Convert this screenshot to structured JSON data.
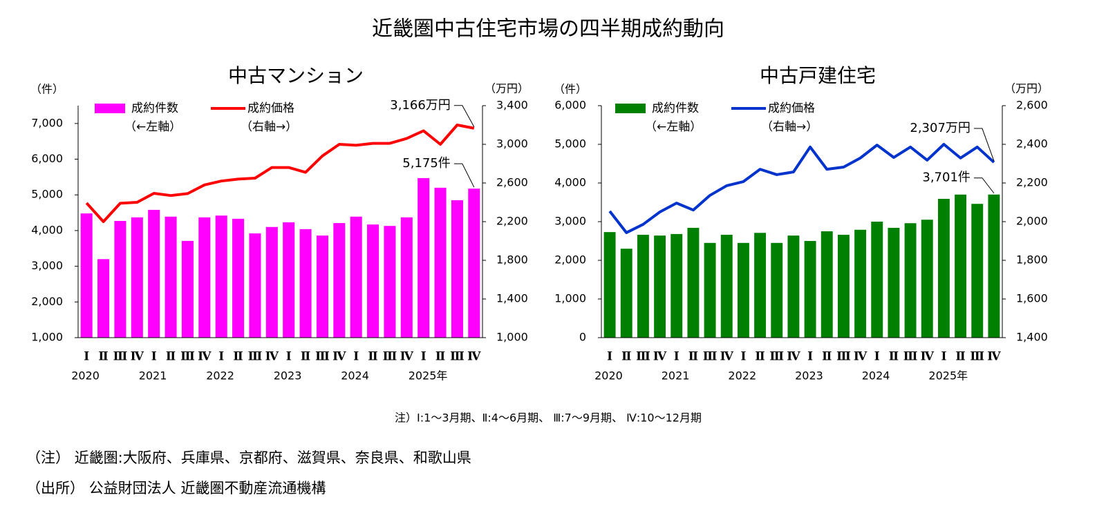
{
  "title": "近畿圏中古住宅市場の四半期成約動向",
  "chart_data": [
    {
      "type": "bar_line",
      "title": "中古マンション",
      "ylabel": "（件）",
      "y2label": "（万円）",
      "categories": [
        "Ⅰ",
        "Ⅱ",
        "Ⅲ",
        "Ⅳ",
        "Ⅰ",
        "Ⅱ",
        "Ⅲ",
        "Ⅳ",
        "Ⅰ",
        "Ⅱ",
        "Ⅲ",
        "Ⅳ",
        "Ⅰ",
        "Ⅱ",
        "Ⅲ",
        "Ⅳ",
        "Ⅰ",
        "Ⅱ",
        "Ⅲ",
        "Ⅳ",
        "Ⅰ",
        "Ⅱ",
        "Ⅲ",
        "Ⅳ"
      ],
      "years": [
        "2020",
        "2021",
        "2022",
        "2023",
        "2024",
        "2025年"
      ],
      "ylim": [
        1000,
        7500
      ],
      "yticks": [
        {
          "value": 1000,
          "label": "1,000"
        },
        {
          "value": 2000,
          "label": "2,000"
        },
        {
          "value": 3000,
          "label": "3,000"
        },
        {
          "value": 4000,
          "label": "4,000"
        },
        {
          "value": 5000,
          "label": "5,000"
        },
        {
          "value": 6000,
          "label": "6,000"
        },
        {
          "value": 7000,
          "label": "7,000"
        }
      ],
      "y2lim": [
        1000,
        3400
      ],
      "y2ticks": [
        {
          "value": 1000,
          "label": "1,000"
        },
        {
          "value": 1400,
          "label": "1,400"
        },
        {
          "value": 1800,
          "label": "1,800"
        },
        {
          "value": 2200,
          "label": "2,200"
        },
        {
          "value": 2600,
          "label": "2,600"
        },
        {
          "value": 3000,
          "label": "3,000"
        },
        {
          "value": 3400,
          "label": "3,400"
        }
      ],
      "series": [
        {
          "name": "成約件数",
          "legend_note": "（←左軸）",
          "type": "bar",
          "color": "#ff00ff",
          "values": [
            4480,
            3200,
            4270,
            4370,
            4580,
            4390,
            3710,
            4370,
            4420,
            4330,
            3920,
            4100,
            4230,
            4040,
            3860,
            4210,
            4390,
            4170,
            4130,
            4370,
            5470,
            5200,
            4850,
            5175
          ],
          "value_labels": [
            null,
            null,
            null,
            null,
            null,
            null,
            null,
            null,
            null,
            null,
            null,
            null,
            null,
            null,
            null,
            null,
            null,
            null,
            null,
            null,
            null,
            null,
            null,
            "5,175件"
          ]
        },
        {
          "name": "成約価格",
          "legend_note": "（右軸→）",
          "type": "line",
          "axis": "y2",
          "color": "#ff0000",
          "values": [
            2393,
            2200,
            2390,
            2400,
            2493,
            2470,
            2490,
            2580,
            2620,
            2640,
            2650,
            2760,
            2760,
            2710,
            2880,
            3000,
            2990,
            3010,
            3010,
            3060,
            3140,
            3000,
            3200,
            3166
          ],
          "value_labels": [
            null,
            null,
            null,
            null,
            null,
            null,
            null,
            null,
            null,
            null,
            null,
            null,
            null,
            null,
            null,
            null,
            null,
            null,
            null,
            null,
            null,
            null,
            null,
            "3,166万円"
          ]
        }
      ]
    },
    {
      "type": "bar_line",
      "title": "中古戸建住宅",
      "ylabel": "（件）",
      "y2label": "（万円）",
      "categories": [
        "Ⅰ",
        "Ⅱ",
        "Ⅲ",
        "Ⅳ",
        "Ⅰ",
        "Ⅱ",
        "Ⅲ",
        "Ⅳ",
        "Ⅰ",
        "Ⅱ",
        "Ⅲ",
        "Ⅳ",
        "Ⅰ",
        "Ⅱ",
        "Ⅲ",
        "Ⅳ",
        "Ⅰ",
        "Ⅱ",
        "Ⅲ",
        "Ⅳ",
        "Ⅰ",
        "Ⅱ",
        "Ⅲ",
        "Ⅳ"
      ],
      "years": [
        "2020",
        "2021",
        "2022",
        "2023",
        "2024",
        "2025年"
      ],
      "ylim": [
        0,
        6000
      ],
      "yticks": [
        0,
        {
          "value": 1000,
          "label": "1,000"
        },
        {
          "value": 2000,
          "label": "2,000"
        },
        {
          "value": 3000,
          "label": "3,000"
        },
        {
          "value": 4000,
          "label": "4,000"
        },
        {
          "value": 5000,
          "label": "5,000"
        },
        {
          "value": 6000,
          "label": "6,000"
        }
      ],
      "y2lim": [
        1400,
        2600
      ],
      "y2ticks": [
        {
          "value": 1400,
          "label": "1,400"
        },
        {
          "value": 1600,
          "label": "1,600"
        },
        {
          "value": 1800,
          "label": "1,800"
        },
        {
          "value": 2000,
          "label": "2,000"
        },
        {
          "value": 2200,
          "label": "2,200"
        },
        {
          "value": 2400,
          "label": "2,400"
        },
        {
          "value": 2600,
          "label": "2,600"
        }
      ],
      "series": [
        {
          "name": "成約件数",
          "legend_note": "（←左軸）",
          "type": "bar",
          "color": "#008000",
          "values": [
            2730,
            2300,
            2660,
            2640,
            2680,
            2840,
            2450,
            2660,
            2450,
            2710,
            2450,
            2640,
            2500,
            2750,
            2660,
            2790,
            3000,
            2840,
            2960,
            3050,
            3590,
            3700,
            3460,
            3701
          ],
          "value_labels": [
            null,
            null,
            null,
            null,
            null,
            null,
            null,
            null,
            null,
            null,
            null,
            null,
            null,
            null,
            null,
            null,
            null,
            null,
            null,
            null,
            null,
            null,
            null,
            "3,701件"
          ]
        },
        {
          "name": "成約価格",
          "legend_note": "（右軸→）",
          "type": "line",
          "axis": "y2",
          "color": "#0033cc",
          "values": [
            2054,
            1943,
            1986,
            2050,
            2096,
            2060,
            2136,
            2186,
            2207,
            2271,
            2243,
            2257,
            2386,
            2271,
            2282,
            2329,
            2396,
            2332,
            2386,
            2318,
            2400,
            2329,
            2386,
            2307
          ],
          "value_labels": [
            null,
            null,
            null,
            null,
            null,
            null,
            null,
            null,
            null,
            null,
            null,
            null,
            null,
            null,
            null,
            null,
            null,
            null,
            null,
            null,
            null,
            null,
            null,
            "2,307万円"
          ]
        }
      ]
    }
  ],
  "note": "注）Ⅰ:1～3月期、Ⅱ:4～6月期、 Ⅲ:7～9月期、 Ⅳ:10～12月期",
  "footnotes": [
    "（注） 近畿圏:大阪府、兵庫県、京都府、滋賀県、奈良県、和歌山県",
    "（出所） 公益財団法人 近畿圏不動産流通機構"
  ]
}
